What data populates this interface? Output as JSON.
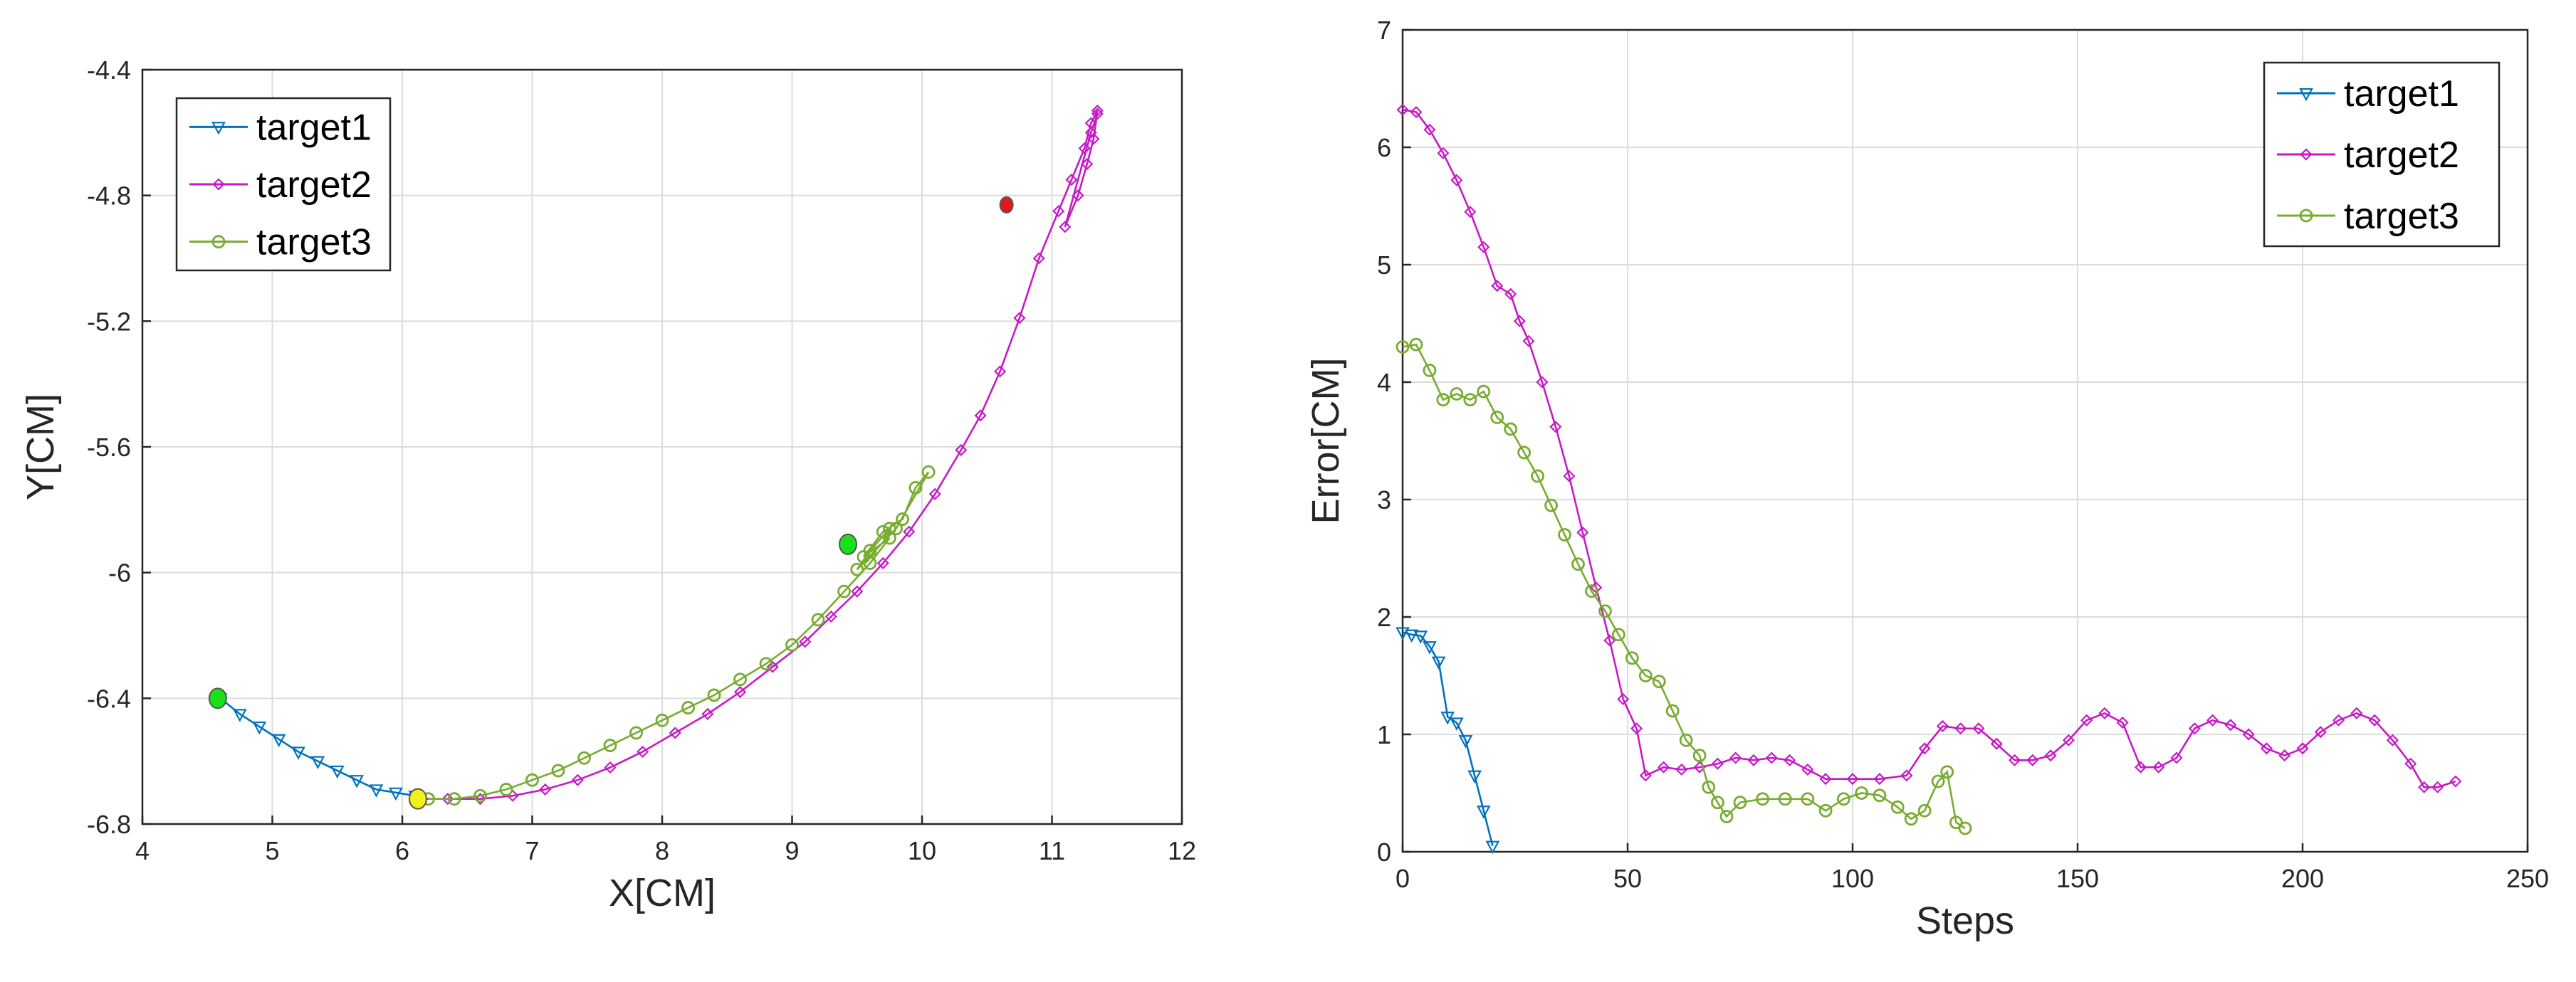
{
  "chart_data": [
    {
      "type": "line",
      "xlabel": "X[CM]",
      "ylabel": "Y[CM]",
      "xlim": [
        4,
        12
      ],
      "ylim": [
        -6.8,
        -4.4
      ],
      "xticks": [
        "4",
        "5",
        "6",
        "7",
        "8",
        "9",
        "10",
        "11",
        "12"
      ],
      "yticks": [
        "-6.8",
        "-6.4",
        "-6",
        "-5.6",
        "-5.2",
        "-4.8",
        "-4.4"
      ],
      "grid": true,
      "legend_position": "top-left",
      "series": [
        {
          "name": "target1",
          "color": "#0072BD",
          "marker": "triangle-down",
          "points": [
            [
              4.6,
              -6.4
            ],
            [
              4.75,
              -6.45
            ],
            [
              4.9,
              -6.49
            ],
            [
              5.05,
              -6.53
            ],
            [
              5.2,
              -6.57
            ],
            [
              5.35,
              -6.6
            ],
            [
              5.5,
              -6.63
            ],
            [
              5.65,
              -6.66
            ],
            [
              5.8,
              -6.69
            ],
            [
              5.95,
              -6.7
            ],
            [
              6.1,
              -6.71
            ]
          ]
        },
        {
          "name": "target2",
          "color": "#C61AC6",
          "marker": "diamond",
          "points": [
            [
              6.15,
              -6.72
            ],
            [
              6.35,
              -6.72
            ],
            [
              6.6,
              -6.72
            ],
            [
              6.85,
              -6.71
            ],
            [
              7.1,
              -6.69
            ],
            [
              7.35,
              -6.66
            ],
            [
              7.6,
              -6.62
            ],
            [
              7.85,
              -6.57
            ],
            [
              8.1,
              -6.51
            ],
            [
              8.35,
              -6.45
            ],
            [
              8.6,
              -6.38
            ],
            [
              8.85,
              -6.3
            ],
            [
              9.1,
              -6.22
            ],
            [
              9.3,
              -6.14
            ],
            [
              9.5,
              -6.06
            ],
            [
              9.7,
              -5.97
            ],
            [
              9.9,
              -5.87
            ],
            [
              10.1,
              -5.75
            ],
            [
              10.3,
              -5.61
            ],
            [
              10.45,
              -5.5
            ],
            [
              10.6,
              -5.36
            ],
            [
              10.75,
              -5.19
            ],
            [
              10.9,
              -5.0
            ],
            [
              11.05,
              -4.85
            ],
            [
              11.15,
              -4.75
            ],
            [
              11.25,
              -4.65
            ],
            [
              11.3,
              -4.57
            ],
            [
              11.35,
              -4.53
            ],
            [
              11.32,
              -4.62
            ],
            [
              11.27,
              -4.7
            ],
            [
              11.2,
              -4.8
            ],
            [
              11.1,
              -4.9
            ],
            [
              11.3,
              -4.6
            ],
            [
              11.35,
              -4.54
            ]
          ]
        },
        {
          "name": "target3",
          "color": "#77AC30",
          "marker": "circle",
          "points": [
            [
              6.2,
              -6.72
            ],
            [
              6.4,
              -6.72
            ],
            [
              6.6,
              -6.71
            ],
            [
              6.8,
              -6.69
            ],
            [
              7.0,
              -6.66
            ],
            [
              7.2,
              -6.63
            ],
            [
              7.4,
              -6.59
            ],
            [
              7.6,
              -6.55
            ],
            [
              7.8,
              -6.51
            ],
            [
              8.0,
              -6.47
            ],
            [
              8.2,
              -6.43
            ],
            [
              8.4,
              -6.39
            ],
            [
              8.6,
              -6.34
            ],
            [
              8.8,
              -6.29
            ],
            [
              9.0,
              -6.23
            ],
            [
              9.2,
              -6.15
            ],
            [
              9.4,
              -6.06
            ],
            [
              9.6,
              -5.97
            ],
            [
              9.75,
              -5.89
            ],
            [
              9.55,
              -5.95
            ],
            [
              9.7,
              -5.87
            ],
            [
              9.85,
              -5.83
            ],
            [
              9.95,
              -5.73
            ],
            [
              10.05,
              -5.68
            ],
            [
              9.8,
              -5.86
            ],
            [
              9.5,
              -5.99
            ],
            [
              9.6,
              -5.93
            ],
            [
              9.75,
              -5.86
            ]
          ]
        }
      ],
      "markers": [
        {
          "x": 4.58,
          "y": -6.4,
          "color": "#1AE01A"
        },
        {
          "x": 6.12,
          "y": -6.72,
          "color": "#F2F21A"
        },
        {
          "x": 9.43,
          "y": -5.91,
          "color": "#1AE01A"
        },
        {
          "x": 10.65,
          "y": -4.83,
          "color": "#E01A1A"
        }
      ]
    },
    {
      "type": "line",
      "xlabel": "Steps",
      "ylabel": "Error[CM]",
      "xlim": [
        0,
        250
      ],
      "ylim": [
        0,
        7
      ],
      "xticks": [
        "0",
        "50",
        "100",
        "150",
        "200",
        "250"
      ],
      "yticks": [
        "0",
        "1",
        "2",
        "3",
        "4",
        "5",
        "6",
        "7"
      ],
      "grid": true,
      "legend_position": "top-right",
      "series": [
        {
          "name": "target1",
          "color": "#0072BD",
          "marker": "triangle-down",
          "points": [
            [
              0,
              1.87
            ],
            [
              2,
              1.85
            ],
            [
              4,
              1.84
            ],
            [
              6,
              1.75
            ],
            [
              8,
              1.62
            ],
            [
              10,
              1.15
            ],
            [
              12,
              1.1
            ],
            [
              14,
              0.95
            ],
            [
              16,
              0.65
            ],
            [
              18,
              0.35
            ],
            [
              20,
              0.05
            ]
          ]
        },
        {
          "name": "target2",
          "color": "#C61AC6",
          "marker": "diamond",
          "points": [
            [
              0,
              6.32
            ],
            [
              3,
              6.3
            ],
            [
              6,
              6.15
            ],
            [
              9,
              5.95
            ],
            [
              12,
              5.72
            ],
            [
              15,
              5.45
            ],
            [
              18,
              5.15
            ],
            [
              21,
              4.82
            ],
            [
              24,
              4.75
            ],
            [
              26,
              4.52
            ],
            [
              28,
              4.35
            ],
            [
              31,
              4.0
            ],
            [
              34,
              3.62
            ],
            [
              37,
              3.2
            ],
            [
              40,
              2.72
            ],
            [
              43,
              2.25
            ],
            [
              46,
              1.8
            ],
            [
              49,
              1.3
            ],
            [
              52,
              1.05
            ],
            [
              54,
              0.65
            ],
            [
              58,
              0.72
            ],
            [
              62,
              0.7
            ],
            [
              66,
              0.72
            ],
            [
              70,
              0.75
            ],
            [
              74,
              0.8
            ],
            [
              78,
              0.78
            ],
            [
              82,
              0.8
            ],
            [
              86,
              0.78
            ],
            [
              90,
              0.7
            ],
            [
              94,
              0.62
            ],
            [
              100,
              0.62
            ],
            [
              106,
              0.62
            ],
            [
              112,
              0.65
            ],
            [
              116,
              0.88
            ],
            [
              120,
              1.07
            ],
            [
              124,
              1.05
            ],
            [
              128,
              1.05
            ],
            [
              132,
              0.92
            ],
            [
              136,
              0.78
            ],
            [
              140,
              0.78
            ],
            [
              144,
              0.82
            ],
            [
              148,
              0.95
            ],
            [
              152,
              1.12
            ],
            [
              156,
              1.18
            ],
            [
              160,
              1.1
            ],
            [
              164,
              0.72
            ],
            [
              168,
              0.72
            ],
            [
              172,
              0.8
            ],
            [
              176,
              1.05
            ],
            [
              180,
              1.12
            ],
            [
              184,
              1.08
            ],
            [
              188,
              1.0
            ],
            [
              192,
              0.88
            ],
            [
              196,
              0.82
            ],
            [
              200,
              0.88
            ],
            [
              204,
              1.02
            ],
            [
              208,
              1.12
            ],
            [
              212,
              1.18
            ],
            [
              216,
              1.12
            ],
            [
              220,
              0.95
            ],
            [
              224,
              0.75
            ],
            [
              227,
              0.55
            ],
            [
              230,
              0.55
            ],
            [
              234,
              0.6
            ]
          ]
        },
        {
          "name": "target3",
          "color": "#77AC30",
          "marker": "circle",
          "points": [
            [
              0,
              4.3
            ],
            [
              3,
              4.32
            ],
            [
              6,
              4.1
            ],
            [
              9,
              3.85
            ],
            [
              12,
              3.9
            ],
            [
              15,
              3.85
            ],
            [
              18,
              3.92
            ],
            [
              21,
              3.7
            ],
            [
              24,
              3.6
            ],
            [
              27,
              3.4
            ],
            [
              30,
              3.2
            ],
            [
              33,
              2.95
            ],
            [
              36,
              2.7
            ],
            [
              39,
              2.45
            ],
            [
              42,
              2.22
            ],
            [
              45,
              2.05
            ],
            [
              48,
              1.85
            ],
            [
              51,
              1.65
            ],
            [
              54,
              1.5
            ],
            [
              57,
              1.45
            ],
            [
              60,
              1.2
            ],
            [
              63,
              0.95
            ],
            [
              66,
              0.82
            ],
            [
              68,
              0.55
            ],
            [
              70,
              0.42
            ],
            [
              72,
              0.3
            ],
            [
              75,
              0.42
            ],
            [
              80,
              0.45
            ],
            [
              85,
              0.45
            ],
            [
              90,
              0.45
            ],
            [
              94,
              0.35
            ],
            [
              98,
              0.45
            ],
            [
              102,
              0.5
            ],
            [
              106,
              0.48
            ],
            [
              110,
              0.38
            ],
            [
              113,
              0.28
            ],
            [
              116,
              0.35
            ],
            [
              119,
              0.6
            ],
            [
              121,
              0.68
            ],
            [
              123,
              0.25
            ],
            [
              125,
              0.2
            ]
          ]
        }
      ]
    }
  ]
}
